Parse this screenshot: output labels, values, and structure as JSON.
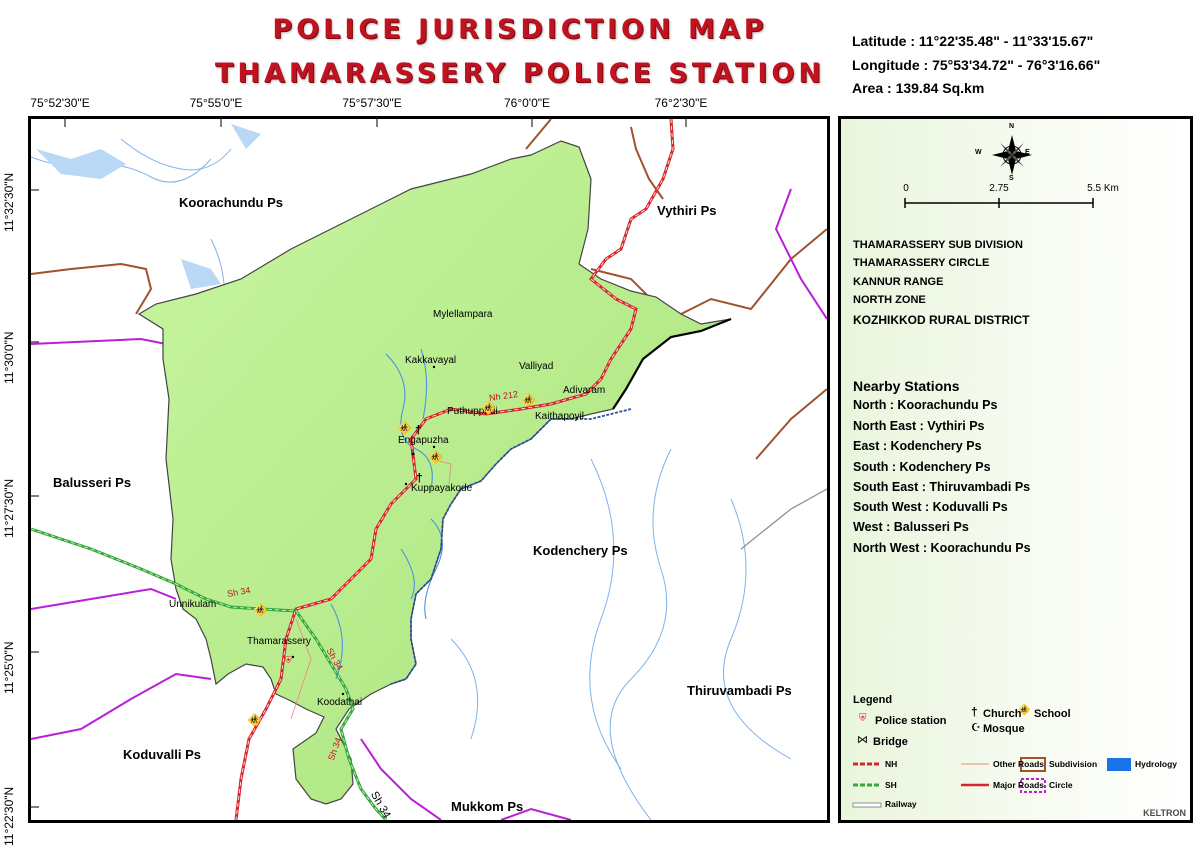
{
  "title": {
    "line1": "POLICE JURISDICTION MAP",
    "line2": "THAMARASSERY POLICE STATION"
  },
  "extent": {
    "latitude": "Latitude : 11°22'35.48\"  -  11°33'15.67\"",
    "longitude": "Longitude : 75°53'34.72\"  -  76°3'16.66\"",
    "area": "Area : 139.84 Sq.km"
  },
  "graticule": {
    "longitudes": [
      "75°52'30\"E",
      "75°55'0\"E",
      "75°57'30\"E",
      "76°0'0\"E",
      "76°2'30\"E"
    ],
    "latitudes": [
      "11°32'30\"N",
      "11°30'0\"N",
      "11°27'30\"N",
      "11°25'0\"N",
      "11°22'30\"N"
    ]
  },
  "map": {
    "neighbours": [
      "Koorachundu Ps",
      "Vythiri Ps",
      "Balusseri Ps",
      "Kodenchery Ps",
      "Thiruvambadi Ps",
      "Koduvalli Ps",
      "Mukkom Ps"
    ],
    "places": [
      "Mylellampara",
      "Kakkavayal",
      "Valliyad",
      "Adivaram",
      "Puthuppadi",
      "Kaithapoyil",
      "Engapuzha",
      "Kuppayakode",
      "Unnikulam",
      "Thamarassery",
      "Koodathai"
    ],
    "road_labels": [
      "Nh 212",
      "Sh 34",
      "Sh 34",
      "Sh 34",
      "Sh 34"
    ],
    "colors": {
      "jurisdiction": "#b9ee8f",
      "nh": "#d9262b",
      "sh": "#38a83c",
      "subdivision": "#a0522d",
      "circle": "#b81fd6",
      "hydrology": "#4f91e0",
      "boundary": "#2b4fa0"
    }
  },
  "panel": {
    "compass": {
      "n": "N",
      "s": "S",
      "e": "E",
      "w": "W"
    },
    "scale": {
      "labels": [
        "0",
        "2.75",
        "5.5 Km"
      ]
    },
    "admin": [
      "THAMARASSERY SUB DIVISION",
      "THAMARASSERY CIRCLE",
      "KANNUR RANGE",
      "NORTH ZONE",
      "KOZHIKKOD RURAL  DISTRICT"
    ],
    "nearby_title": "Nearby Stations",
    "nearby": [
      "North : Koorachundu Ps",
      "North East : Vythiri Ps",
      "East : Kodenchery Ps",
      "South : Kodenchery Ps",
      "South East : Thiruvambadi Ps",
      "South West : Koduvalli Ps",
      "West : Balusseri Ps",
      "North West : Koorachundu Ps"
    ],
    "legend": {
      "title": "Legend",
      "police_station": "Police station",
      "church": "Church",
      "school": "School",
      "mosque": "Mosque",
      "bridge": "Bridge",
      "nh": "NH",
      "other_roads": "Other Roads",
      "subdivision": "Subdivision",
      "hydrology": "Hydrology",
      "sh": "SH",
      "major_roads": "Major Roads",
      "circle": "Circle",
      "railway": "Railway"
    },
    "credit": "KELTRON"
  }
}
